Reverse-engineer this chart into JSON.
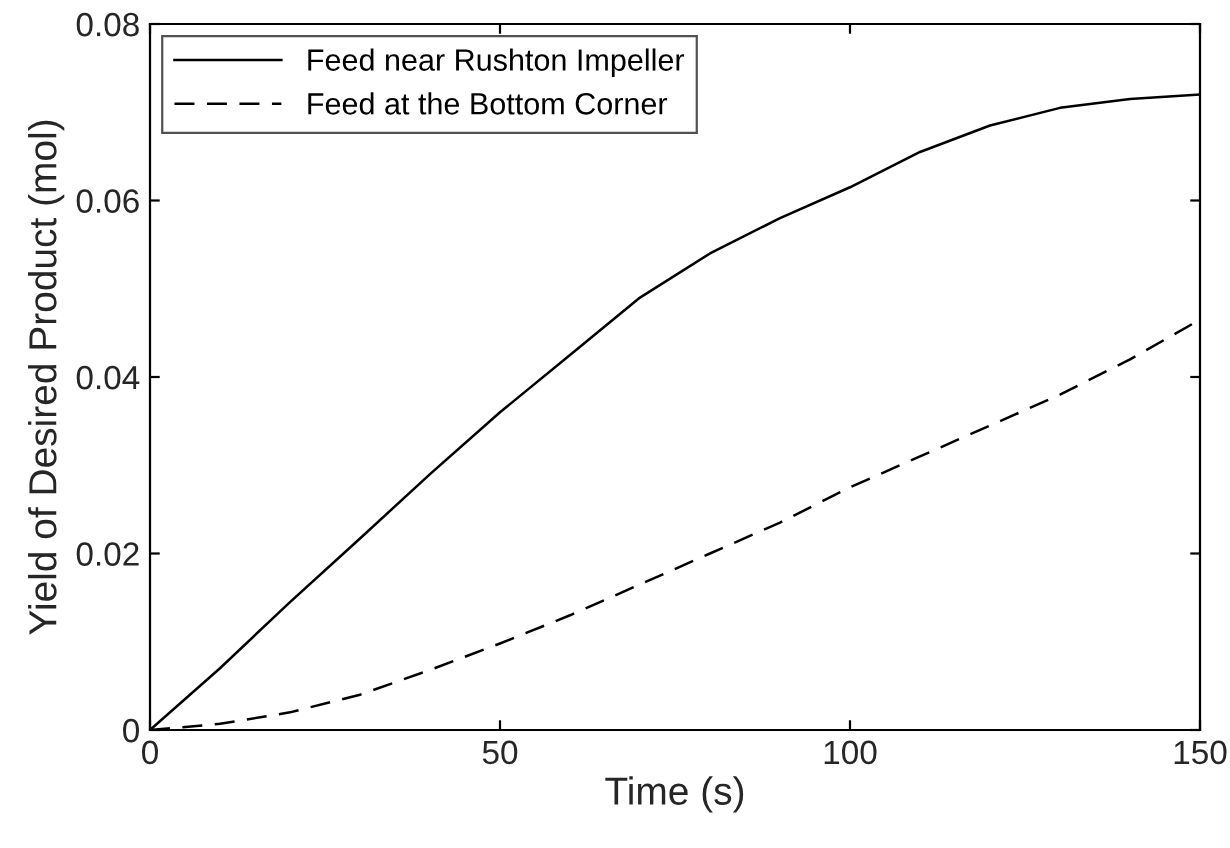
{
  "chart_data": {
    "type": "line",
    "xlabel": "Time (s)",
    "ylabel": "Yield of Desired Product (mol)",
    "x": [
      0,
      10,
      20,
      30,
      40,
      50,
      60,
      70,
      80,
      90,
      100,
      110,
      120,
      130,
      140,
      150
    ],
    "series": [
      {
        "name": "Feed near Rushton Impeller",
        "color": "#000000",
        "line_style": "solid",
        "values": [
          0,
          0.007,
          0.0145,
          0.0217,
          0.029,
          0.036,
          0.0425,
          0.049,
          0.054,
          0.058,
          0.0615,
          0.0655,
          0.0685,
          0.0705,
          0.0715,
          0.072
        ]
      },
      {
        "name": "Feed at the Bottom Corner",
        "color": "#000000",
        "line_style": "dashed",
        "values": [
          0,
          0.0007,
          0.002,
          0.004,
          0.0068,
          0.0098,
          0.013,
          0.0165,
          0.02,
          0.0235,
          0.0275,
          0.031,
          0.0345,
          0.038,
          0.042,
          0.0465
        ]
      }
    ],
    "xlim": [
      0,
      150
    ],
    "xticks": [
      0,
      50,
      100,
      150
    ],
    "ylim": [
      0,
      0.08
    ],
    "yticks": [
      0,
      0.02,
      0.04,
      0.06,
      0.08
    ],
    "grid": false,
    "legend": "top left",
    "marker": "none"
  }
}
